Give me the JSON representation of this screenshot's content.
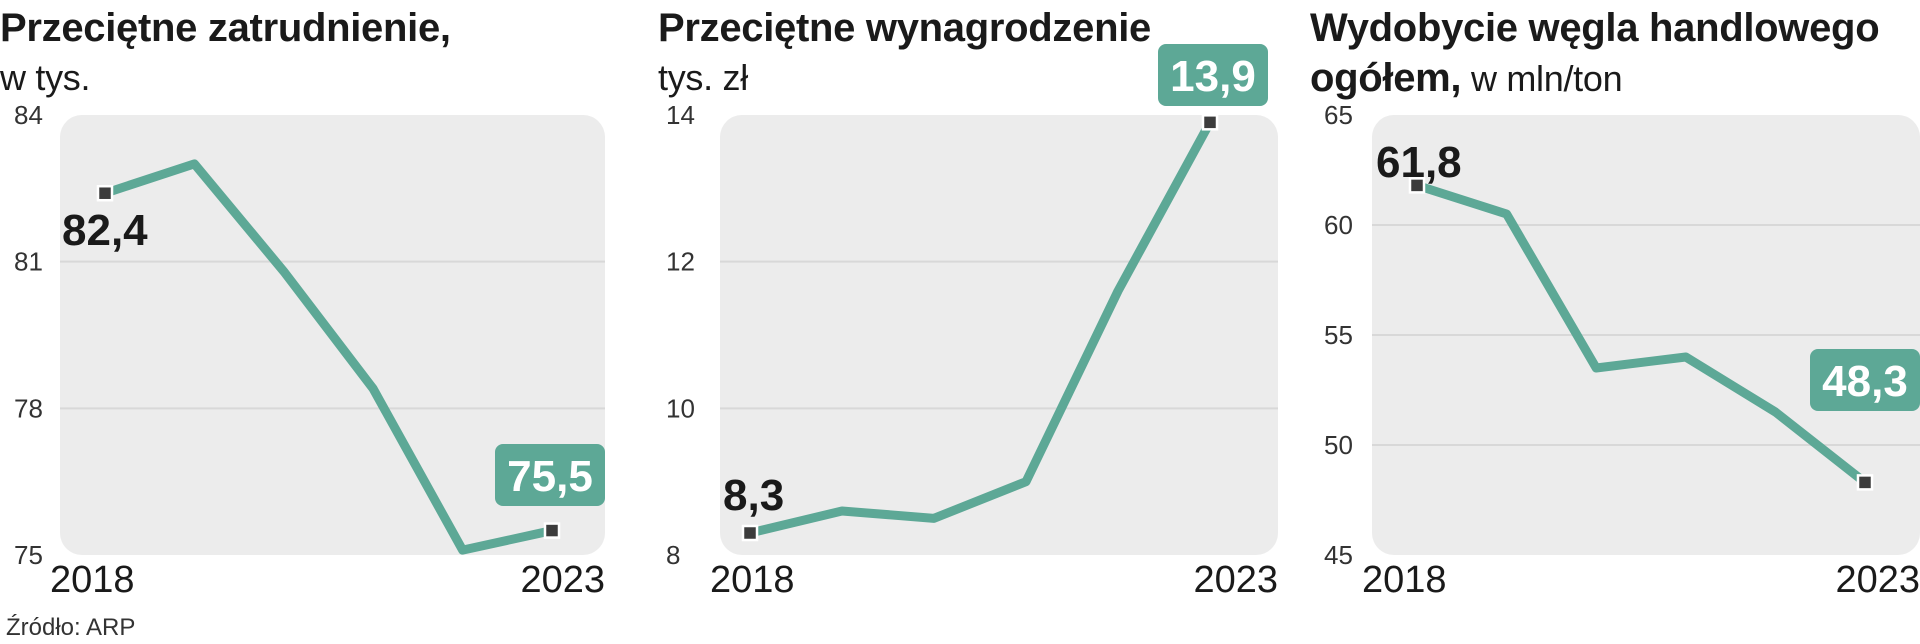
{
  "colors": {
    "line": "#5da896",
    "badge": "#5da896",
    "plot_bg": "#ececec",
    "grid": "#d8d8d8",
    "marker": "#3c3c3c"
  },
  "source": "Źródło: ARP",
  "chart_data": [
    {
      "type": "line",
      "title": "Przeciętne zatrudnienie,",
      "subtitle": "w tys.",
      "x": [
        "2018",
        "2019",
        "2020",
        "2021",
        "2022",
        "2023"
      ],
      "x_tick_labels": [
        "2018",
        "2023"
      ],
      "values": [
        82.4,
        83.0,
        80.8,
        78.4,
        75.1,
        75.5
      ],
      "ylim": [
        75,
        84
      ],
      "yticks": [
        "75",
        "78",
        "81",
        "84"
      ],
      "start_label": "82,4",
      "end_label": "75,5",
      "grid": true
    },
    {
      "type": "line",
      "title": "Przeciętne wynagrodzenie",
      "subtitle": "tys. zł",
      "x": [
        "2018",
        "2019",
        "2020",
        "2021",
        "2022",
        "2023"
      ],
      "x_tick_labels": [
        "2018",
        "2023"
      ],
      "values": [
        8.3,
        8.6,
        8.5,
        9.0,
        11.6,
        13.9
      ],
      "ylim": [
        8,
        14
      ],
      "yticks": [
        "8",
        "10",
        "12",
        "14"
      ],
      "start_label": "8,3",
      "end_label": "13,9",
      "grid": true
    },
    {
      "type": "line",
      "title": "Wydobycie węgla handlowego",
      "title_line2": "ogółem,",
      "subtitle": "w mln/ton",
      "x": [
        "2018",
        "2019",
        "2020",
        "2021",
        "2022",
        "2023"
      ],
      "x_tick_labels": [
        "2018",
        "2023"
      ],
      "values": [
        61.8,
        60.5,
        53.5,
        54.0,
        51.5,
        48.3
      ],
      "ylim": [
        45,
        65
      ],
      "yticks": [
        "45",
        "50",
        "55",
        "60",
        "65"
      ],
      "start_label": "61,8",
      "end_label": "48,3",
      "grid": true
    }
  ]
}
